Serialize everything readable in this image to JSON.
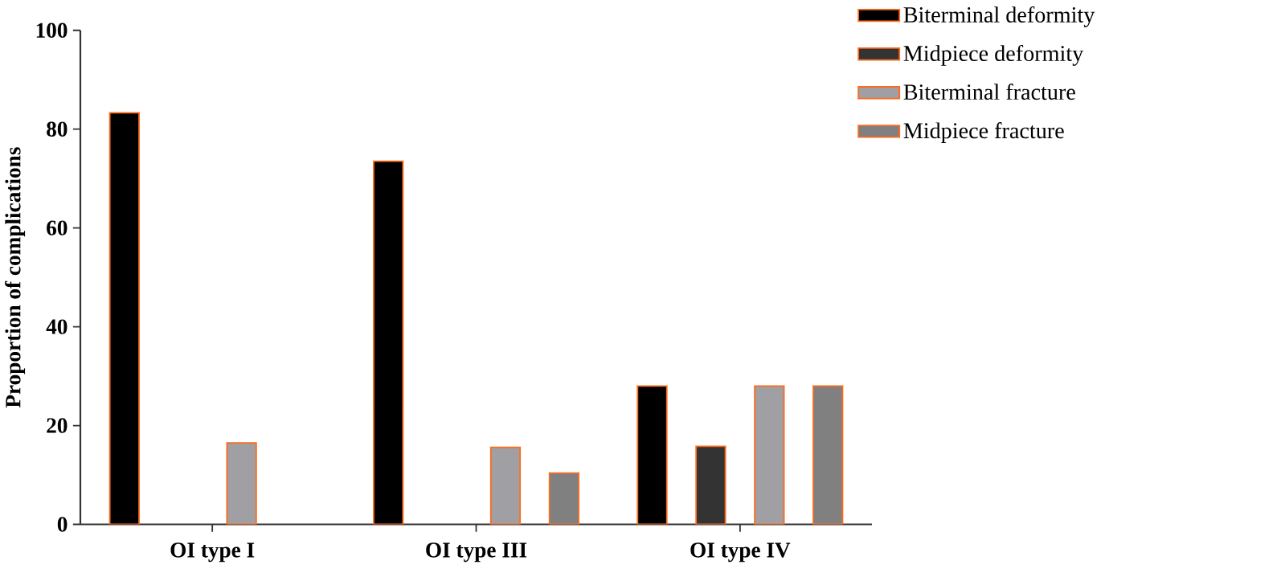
{
  "chart_data": {
    "type": "bar",
    "ylabel": "Proportion of complications",
    "categories": [
      "OI type I",
      "OI type III",
      "OI type IV"
    ],
    "series": [
      {
        "name": "Biterminal deformity",
        "color": "#000000",
        "values": [
          83.3,
          73.5,
          28.0
        ]
      },
      {
        "name": "Midpiece deformity",
        "color": "#333333",
        "values": [
          null,
          null,
          15.8
        ]
      },
      {
        "name": "Biterminal fracture",
        "color": "#a0a0a4",
        "values": [
          16.5,
          15.6,
          28.0
        ]
      },
      {
        "name": "Midpiece fracture",
        "color": "#808080",
        "values": [
          null,
          10.4,
          28.0
        ]
      }
    ],
    "ylim": [
      0,
      100
    ],
    "yticks": [
      0,
      20,
      40,
      60,
      80,
      100
    ],
    "grid": false,
    "legend": "top right"
  }
}
